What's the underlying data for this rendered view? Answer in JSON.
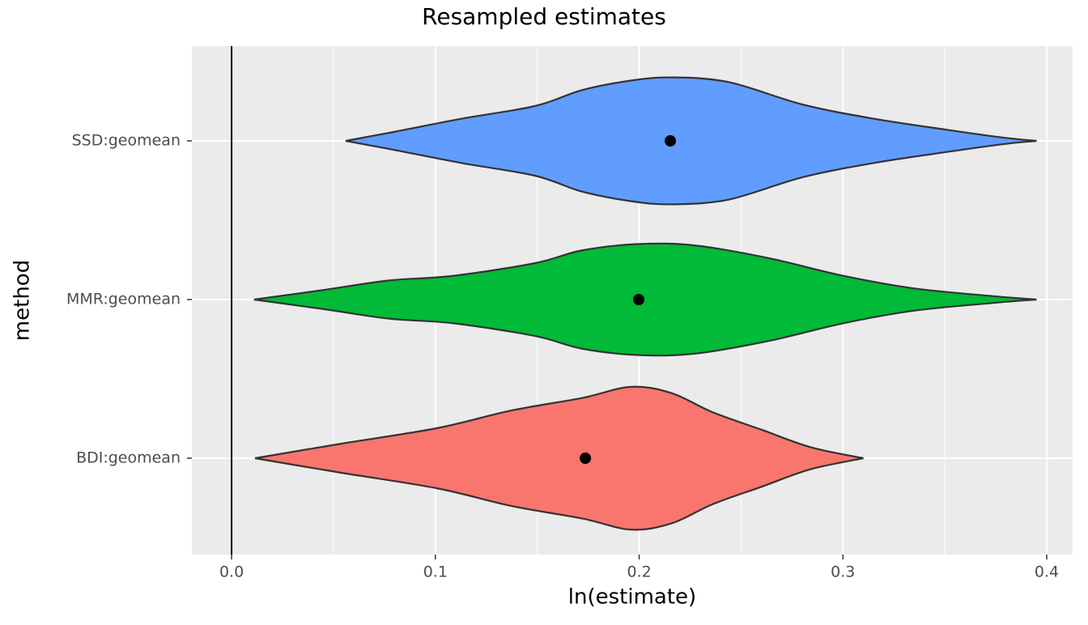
{
  "chart_data": {
    "type": "violin",
    "title": "Resampled estimates",
    "xlabel": "ln(estimate)",
    "ylabel": "method",
    "categories": [
      "BDI:geomean",
      "MMR:geomean",
      "SSD:geomean"
    ],
    "series": [
      {
        "name": "BDI:geomean",
        "color": "#f8766d",
        "mean": 0.1736,
        "violin": {
          "x": [
            0.0115,
            0.053,
            0.101,
            0.137,
            0.172,
            0.196,
            0.216,
            0.236,
            0.26,
            0.284,
            0.31
          ],
          "width": [
            0,
            0.09,
            0.19,
            0.3,
            0.38,
            0.45,
            0.41,
            0.29,
            0.18,
            0.07,
            0
          ]
        }
      },
      {
        "name": "MMR:geomean",
        "color": "#00ba38",
        "mean": 0.1998,
        "violin": {
          "x": [
            0.011,
            0.045,
            0.077,
            0.109,
            0.149,
            0.172,
            0.2,
            0.228,
            0.264,
            0.3,
            0.335,
            0.375,
            0.395
          ],
          "width": [
            0,
            0.06,
            0.12,
            0.15,
            0.23,
            0.31,
            0.35,
            0.34,
            0.26,
            0.15,
            0.07,
            0.02,
            0
          ]
        }
      },
      {
        "name": "SSD:geomean",
        "color": "#619cff",
        "mean": 0.2153,
        "violin": {
          "x": [
            0.056,
            0.077,
            0.113,
            0.149,
            0.172,
            0.196,
            0.216,
            0.244,
            0.28,
            0.315,
            0.351,
            0.379,
            0.395
          ],
          "width": [
            0,
            0.05,
            0.14,
            0.22,
            0.32,
            0.38,
            0.4,
            0.37,
            0.23,
            0.14,
            0.07,
            0.02,
            0
          ]
        }
      }
    ],
    "xlim": [
      -0.0195,
      0.4127
    ],
    "xticks": [
      {
        "value": 0,
        "label": "0.0"
      },
      0.1,
      0.2,
      0.3,
      0.4
    ],
    "minor_xticks": [
      0.05,
      0.15,
      0.25,
      0.35
    ],
    "vline": 0,
    "grid": true
  }
}
